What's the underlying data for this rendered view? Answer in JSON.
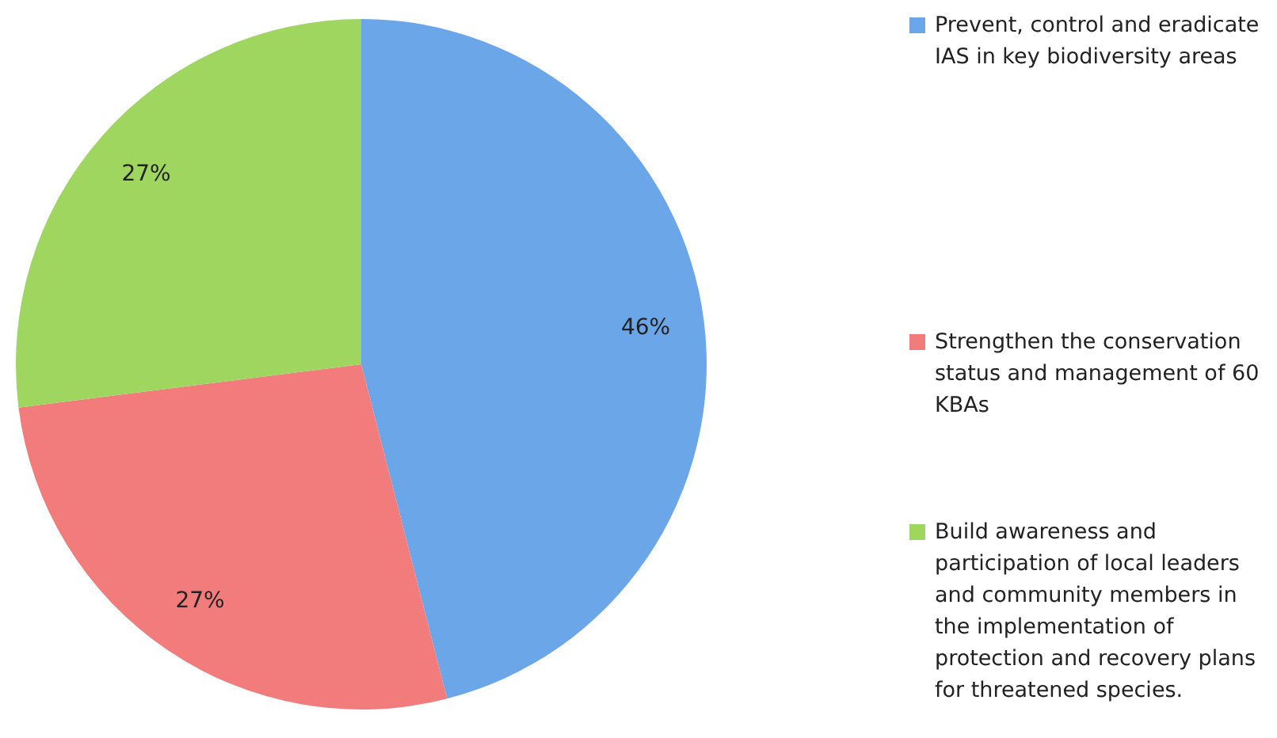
{
  "chart_data": {
    "type": "pie",
    "categories": [
      "Prevent, control and eradicate IAS in key biodiversity areas",
      "Strengthen the conservation status and management of 60 KBAs",
      "Build awareness and participation of local leaders and community members in the implementation of protection and recovery plans for threatened species."
    ],
    "values": [
      46,
      27,
      27
    ],
    "colors": [
      "#6aa6e8",
      "#f27c7c",
      "#9fd65f"
    ],
    "value_labels": [
      "46%",
      "27%",
      "27%"
    ],
    "legend": "right"
  }
}
